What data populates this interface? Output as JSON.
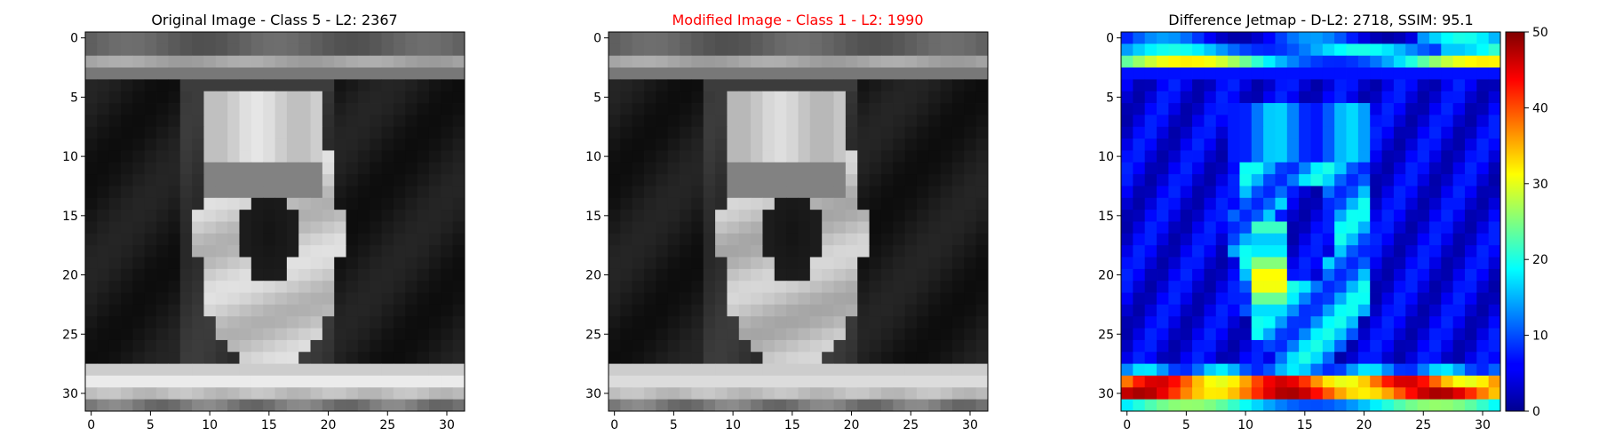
{
  "figure": {
    "panels": [
      {
        "title": "Original Image - Class 5 - L2: 2367",
        "title_color": "#000000"
      },
      {
        "title": "Modified Image - Class 1 - L2: 1990",
        "title_color": "#ff0000"
      },
      {
        "title": "Difference Jetmap - D-L2: 2718, SSIM: 95.1",
        "title_color": "#000000"
      }
    ],
    "colorbar_ticks": [
      "0",
      "10",
      "20",
      "30",
      "40",
      "50"
    ]
  },
  "chart_data": [
    {
      "type": "heatmap",
      "title": "Original Image - Class 5 - L2: 2367",
      "colormap": "gray",
      "xlim": [
        -0.5,
        31.5
      ],
      "ylim": [
        31.5,
        -0.5
      ],
      "xticks": [
        0,
        5,
        10,
        15,
        20,
        25,
        30
      ],
      "yticks": [
        0,
        5,
        10,
        15,
        20,
        25,
        30
      ],
      "grid": false
    },
    {
      "type": "heatmap",
      "title": "Modified Image - Class 1 - L2: 1990",
      "title_color": "#ff0000",
      "colormap": "gray",
      "xlim": [
        -0.5,
        31.5
      ],
      "ylim": [
        31.5,
        -0.5
      ],
      "xticks": [
        0,
        5,
        10,
        15,
        20,
        25,
        30
      ],
      "yticks": [
        0,
        5,
        10,
        15,
        20,
        25,
        30
      ],
      "grid": false
    },
    {
      "type": "heatmap",
      "title": "Difference Jetmap - D-L2: 2718, SSIM: 95.1",
      "colormap": "jet",
      "xlim": [
        -0.5,
        31.5
      ],
      "ylim": [
        31.5,
        -0.5
      ],
      "xticks": [
        0,
        5,
        10,
        15,
        20,
        25,
        30
      ],
      "yticks": [
        0,
        5,
        10,
        15,
        20,
        25,
        30
      ],
      "colorbar": {
        "range": [
          0,
          50
        ],
        "ticks": [
          0,
          10,
          20,
          30,
          40,
          50
        ]
      },
      "grid": false
    }
  ]
}
